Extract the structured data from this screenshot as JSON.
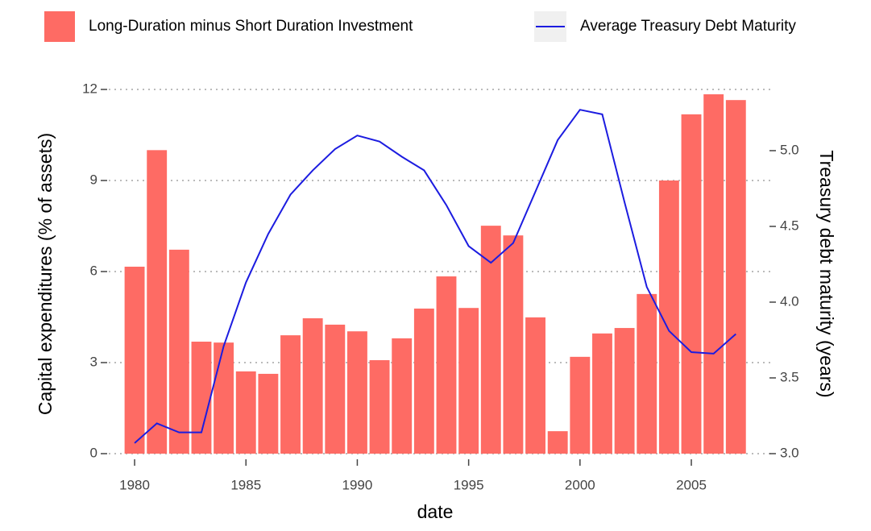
{
  "chart_data": {
    "type": "bar_line",
    "x": [
      1980,
      1981,
      1982,
      1983,
      1984,
      1985,
      1986,
      1987,
      1988,
      1989,
      1990,
      1991,
      1992,
      1993,
      1994,
      1995,
      1996,
      1997,
      1998,
      1999,
      2000,
      2001,
      2002,
      2003,
      2004,
      2005,
      2006,
      2007
    ],
    "series": [
      {
        "name": "Long-Duration minus Short Duration Investment",
        "color": "#fe6b64",
        "type": "bar",
        "values": [
          6.16,
          10.0,
          6.72,
          3.69,
          3.66,
          2.71,
          2.63,
          3.9,
          4.46,
          4.25,
          4.03,
          3.08,
          3.8,
          4.78,
          5.84,
          4.8,
          7.51,
          7.19,
          4.49,
          0.74,
          3.19,
          3.96,
          4.14,
          5.26,
          9.0,
          11.18,
          11.84,
          11.65
        ]
      },
      {
        "name": "Average Treasury Debt Maturity",
        "color": "#1c1ce0",
        "type": "line",
        "axis": "y2",
        "values": [
          3.07,
          3.2,
          3.14,
          3.14,
          3.71,
          4.13,
          4.45,
          4.71,
          4.87,
          5.01,
          5.1,
          5.06,
          4.96,
          4.87,
          4.64,
          4.37,
          4.26,
          4.39,
          4.73,
          5.07,
          5.27,
          5.24,
          4.66,
          4.1,
          3.81,
          3.67,
          3.66,
          3.79
        ]
      }
    ],
    "xlabel": "date",
    "ylabel": "Capital expenditures  (% of assets)",
    "y2label": "Treasury debt maturity (years)",
    "xlim": [
      1978.84,
      2008.69
    ],
    "xticks": [
      1980,
      1985,
      1990,
      1995,
      2000,
      2005
    ],
    "ylim": [
      0,
      12
    ],
    "yticks": [
      0,
      3,
      6,
      9,
      12
    ],
    "y2lim": [
      3,
      5.404
    ],
    "y2ticks": [
      {
        "value": 3,
        "label": "3.0"
      },
      {
        "value": 3.5,
        "label": "3.5"
      },
      {
        "value": 4,
        "label": "4.0"
      },
      {
        "value": 4.5,
        "label": "4.5"
      },
      {
        "value": 5,
        "label": "5.0"
      }
    ],
    "grid": true,
    "legend": "top"
  }
}
